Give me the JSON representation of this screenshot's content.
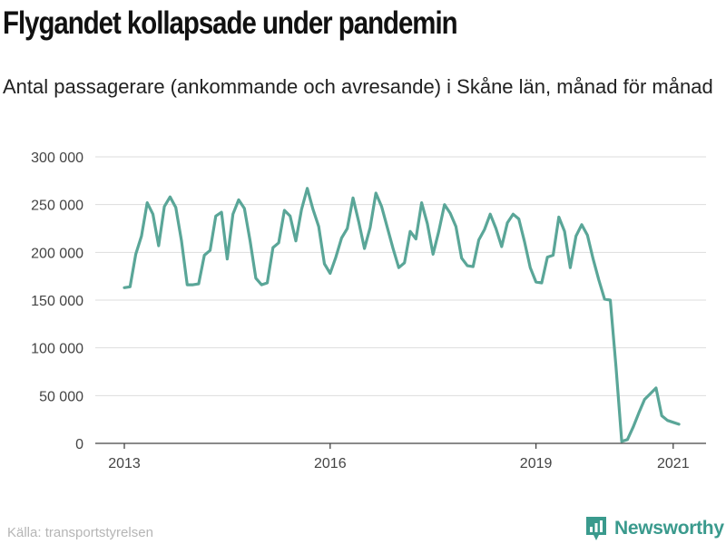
{
  "title": "Flygandet kollapsade under pandemin",
  "subtitle": "Antal passagerare (ankommande och avresande) i Skåne län, månad för månad",
  "source": "Källa: transportstyrelsen",
  "brand": "Newsworthy",
  "colors": {
    "line": "#5aa698",
    "grid": "#dddddd",
    "brand": "#3a9a8d"
  },
  "chart_data": {
    "type": "line",
    "title": "Flygandet kollapsade under pandemin",
    "subtitle": "Antal passagerare (ankommande och avresande) i Skåne län, månad för månad",
    "xlabel": "",
    "ylabel": "",
    "ylim": [
      0,
      300000
    ],
    "y_ticks": [
      0,
      50000,
      100000,
      150000,
      200000,
      250000,
      300000
    ],
    "y_tick_labels": [
      "0",
      "50 000",
      "100 000",
      "150 000",
      "200 000",
      "250 000",
      "300 000"
    ],
    "x_ticks": [
      2013,
      2016,
      2019,
      2021
    ],
    "x_tick_labels": [
      "2013",
      "2016",
      "2019",
      "2021"
    ],
    "grid": "horizontal",
    "x_start": "2013-01",
    "x_frequency": "monthly",
    "series": [
      {
        "values": [
          163000,
          164000,
          198000,
          217000,
          252000,
          240000,
          207000,
          248000,
          258000,
          247000,
          212000,
          166000,
          166000,
          167000,
          197000,
          202000,
          238000,
          242000,
          193000,
          240000,
          255000,
          246000,
          212000,
          173000,
          166000,
          168000,
          205000,
          210000,
          244000,
          238000,
          212000,
          245000,
          267000,
          245000,
          227000,
          188000,
          178000,
          195000,
          215000,
          225000,
          257000,
          232000,
          204000,
          226000,
          262000,
          248000,
          226000,
          204000,
          184000,
          189000,
          222000,
          214000,
          252000,
          230000,
          198000,
          222000,
          250000,
          241000,
          227000,
          194000,
          186000,
          185000,
          213000,
          224000,
          240000,
          225000,
          206000,
          231000,
          240000,
          235000,
          211000,
          184000,
          169000,
          168000,
          195000,
          197000,
          237000,
          222000,
          184000,
          217000,
          229000,
          218000,
          193000,
          171000,
          151000,
          150000,
          80000,
          2000,
          4000,
          17000,
          32000,
          46000,
          52000,
          58000,
          29000,
          24000,
          22000,
          20000
        ]
      }
    ]
  }
}
